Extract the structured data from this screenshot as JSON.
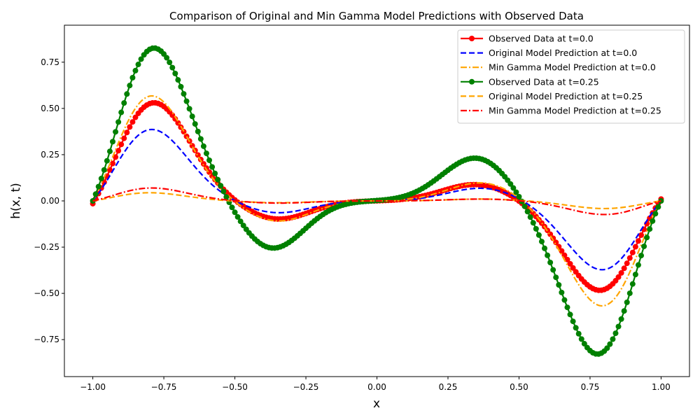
{
  "chart_data": {
    "type": "line",
    "title": "Comparison of Original and Min Gamma Model Predictions with Observed Data",
    "xlabel": "x",
    "ylabel": "h(x, t)",
    "xlim": [
      -1.1,
      1.1
    ],
    "ylim": [
      -0.95,
      0.95
    ],
    "xticks": [
      -1.0,
      -0.75,
      -0.5,
      -0.25,
      0.0,
      0.25,
      0.5,
      0.75,
      1.0
    ],
    "xtick_labels": [
      "−1.00",
      "−0.75",
      "−0.50",
      "−0.25",
      "0.00",
      "0.25",
      "0.50",
      "0.75",
      "1.00"
    ],
    "yticks": [
      -0.75,
      -0.5,
      -0.25,
      0.0,
      0.25,
      0.5,
      0.75
    ],
    "ytick_labels": [
      "−0.75",
      "−0.50",
      "−0.25",
      "0.00",
      "0.25",
      "0.50",
      "0.75"
    ],
    "grid": false,
    "legend_position": "top-right",
    "x_range": [
      -1.0,
      1.0
    ],
    "series": [
      {
        "name": "Observed Data at t=0.0",
        "color": "#ff0000",
        "style": "solid",
        "marker": "circle",
        "peaks": [
          {
            "x": -0.8,
            "y": 0.565
          },
          {
            "x": -0.35,
            "y": -0.1
          },
          {
            "x": 0.35,
            "y": 0.09
          },
          {
            "x": 0.8,
            "y": -0.515
          }
        ],
        "endpoints": [
          {
            "x": -1.0,
            "y": -0.015
          },
          {
            "x": 1.0,
            "y": 0.01
          }
        ]
      },
      {
        "name": "Original Model Prediction at t=0.0",
        "color": "#0000ff",
        "style": "dashed",
        "marker": "none",
        "peaks": [
          {
            "x": -0.81,
            "y": 0.415
          },
          {
            "x": -0.35,
            "y": -0.065
          },
          {
            "x": 0.37,
            "y": 0.07
          },
          {
            "x": 0.81,
            "y": -0.4
          }
        ]
      },
      {
        "name": "Min Gamma Model Prediction at t=0.0",
        "color": "#ffa500",
        "style": "dashdot",
        "marker": "none",
        "peaks": [
          {
            "x": -0.81,
            "y": 0.61
          },
          {
            "x": -0.35,
            "y": -0.11
          },
          {
            "x": 0.37,
            "y": 0.1
          },
          {
            "x": 0.81,
            "y": -0.61
          }
        ]
      },
      {
        "name": "Observed Data at t=0.25",
        "color": "#008000",
        "style": "solid",
        "marker": "circle",
        "peaks": [
          {
            "x": -0.8,
            "y": 0.88
          },
          {
            "x": -0.37,
            "y": -0.26
          },
          {
            "x": 0.35,
            "y": 0.235
          },
          {
            "x": 0.79,
            "y": -0.875
          }
        ]
      },
      {
        "name": "Original Model Prediction at t=0.25",
        "color": "#ffa500",
        "style": "dashed",
        "marker": "none",
        "peaks": [
          {
            "x": -0.82,
            "y": 0.048
          },
          {
            "x": -0.35,
            "y": -0.01
          },
          {
            "x": 0.37,
            "y": 0.01
          },
          {
            "x": 0.82,
            "y": -0.045
          }
        ]
      },
      {
        "name": "Min Gamma Model Prediction at t=0.25",
        "color": "#ff0000",
        "style": "dashdot",
        "marker": "none",
        "peaks": [
          {
            "x": -0.81,
            "y": 0.075
          },
          {
            "x": -0.35,
            "y": -0.012
          },
          {
            "x": 0.37,
            "y": 0.01
          },
          {
            "x": 0.82,
            "y": -0.08
          }
        ]
      }
    ]
  }
}
